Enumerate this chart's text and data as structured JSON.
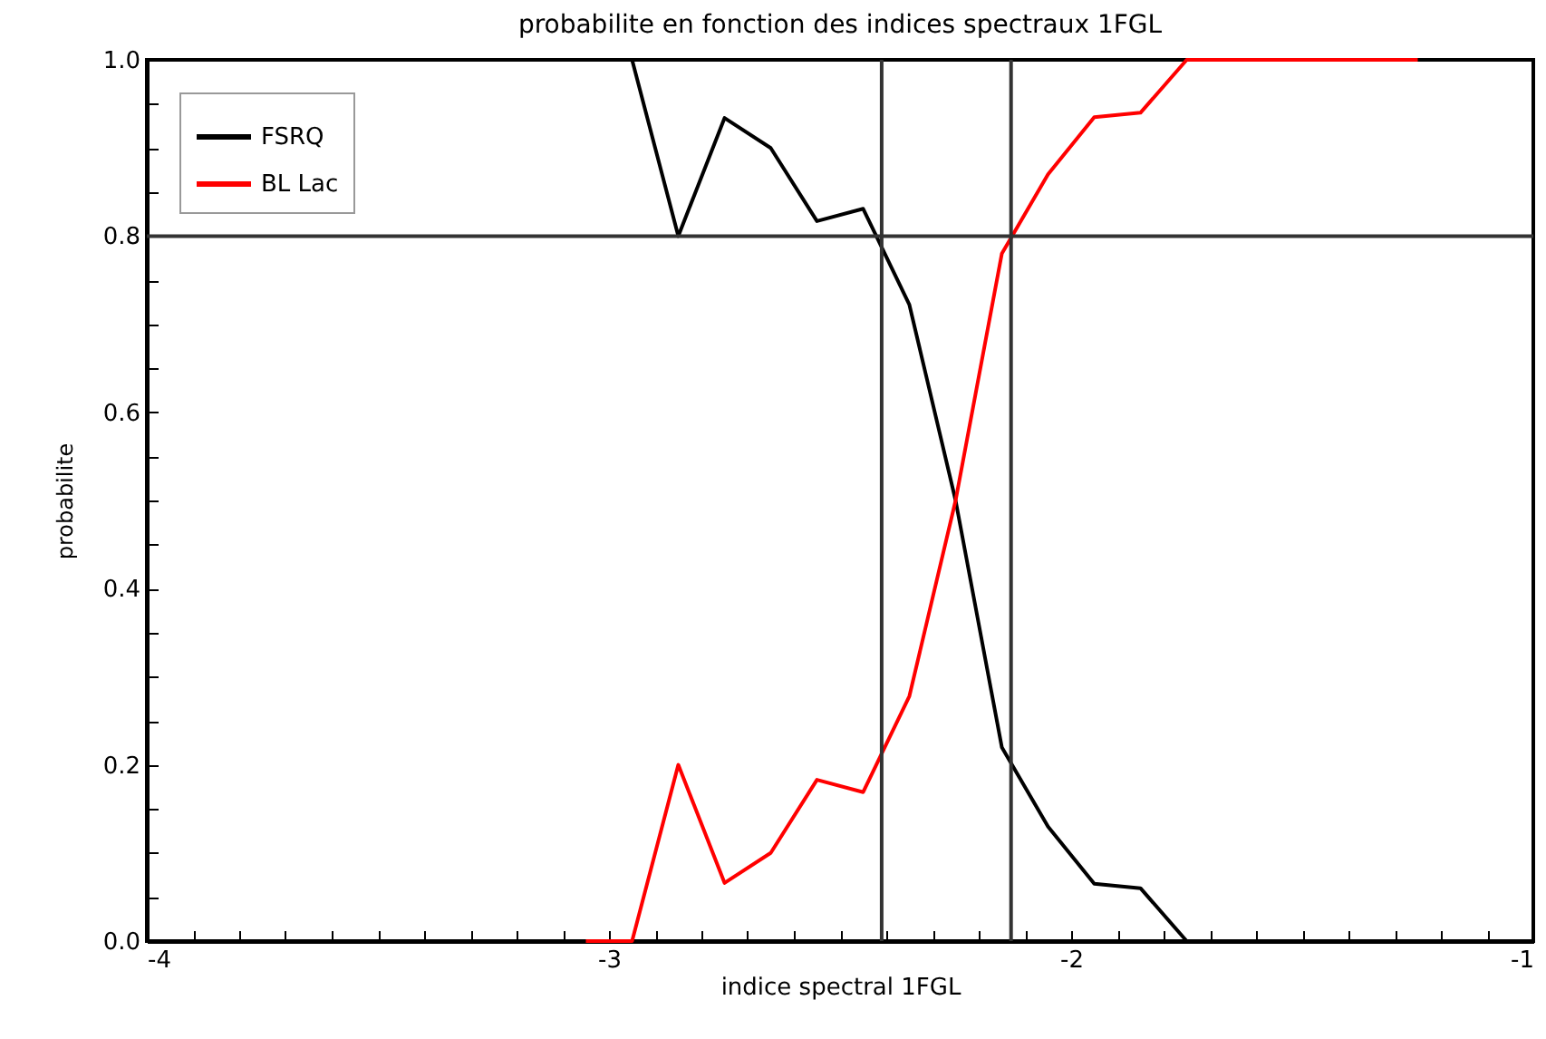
{
  "chart_data": {
    "type": "line",
    "title": "probabilite en fonction des indices spectraux 1FGL",
    "xlabel": "indice spectral 1FGL",
    "ylabel": "probabilite",
    "series": [
      {
        "name": "FSRQ",
        "color": "#000000",
        "x": [
          -2.95,
          -2.85,
          -2.75,
          -2.65,
          -2.55,
          -2.45,
          -2.35,
          -2.25,
          -2.15,
          -2.05,
          -1.95,
          -1.85,
          -1.75
        ],
        "values": [
          1.0,
          0.8,
          0.934,
          0.9,
          0.817,
          0.831,
          0.722,
          0.5,
          0.22,
          0.13,
          0.065,
          0.06,
          0.0
        ]
      },
      {
        "name": "BL Lac",
        "color": "#ff0000",
        "x": [
          -3.05,
          -2.95,
          -2.85,
          -2.75,
          -2.65,
          -2.55,
          -2.45,
          -2.35,
          -2.25,
          -2.15,
          -2.05,
          -1.95,
          -1.85,
          -1.75,
          -1.65,
          -1.55,
          -1.45,
          -1.35,
          -1.25
        ],
        "values": [
          0.0,
          0.0,
          0.2,
          0.066,
          0.1,
          0.183,
          0.169,
          0.278,
          0.5,
          0.78,
          0.87,
          0.935,
          0.94,
          1.0,
          1.0,
          1.0,
          1.0,
          1.0,
          1.0
        ]
      }
    ],
    "xlim": [
      -4,
      -1
    ],
    "ylim": [
      0,
      1
    ],
    "xticks": [
      -4,
      {
        "value": -3.9,
        "label": null
      },
      {
        "value": -3.8,
        "label": null
      },
      {
        "value": -3.7,
        "label": null
      },
      {
        "value": -3.6,
        "label": null
      },
      {
        "value": -3.5,
        "label": null
      },
      {
        "value": -3.4,
        "label": null
      },
      {
        "value": -3.3,
        "label": null
      },
      {
        "value": -3.2,
        "label": null
      },
      {
        "value": -3.1,
        "label": null
      },
      -3,
      {
        "value": -2.9,
        "label": null
      },
      {
        "value": -2.8,
        "label": null
      },
      {
        "value": -2.7,
        "label": null
      },
      {
        "value": -2.6,
        "label": null
      },
      {
        "value": -2.5,
        "label": null
      },
      {
        "value": -2.4,
        "label": null
      },
      {
        "value": -2.3,
        "label": null
      },
      {
        "value": -2.2,
        "label": null
      },
      {
        "value": -2.1,
        "label": null
      },
      -2,
      {
        "value": -1.9,
        "label": null
      },
      {
        "value": -1.8,
        "label": null
      },
      {
        "value": -1.7,
        "label": null
      },
      {
        "value": -1.6,
        "label": null
      },
      {
        "value": -1.5,
        "label": null
      },
      {
        "value": -1.4,
        "label": null
      },
      {
        "value": -1.3,
        "label": null
      },
      {
        "value": -1.2,
        "label": null
      },
      {
        "value": -1.1,
        "label": null
      },
      -1
    ],
    "yticks": [
      {
        "value": 0,
        "label": "0.0"
      },
      {
        "value": 0.05,
        "label": null
      },
      {
        "value": 0.1,
        "label": null
      },
      {
        "value": 0.15,
        "label": null
      },
      {
        "value": 0.2,
        "label": "0.2"
      },
      {
        "value": 0.25,
        "label": null
      },
      {
        "value": 0.3,
        "label": null
      },
      {
        "value": 0.35,
        "label": null
      },
      {
        "value": 0.4,
        "label": "0.4"
      },
      {
        "value": 0.45,
        "label": null
      },
      {
        "value": 0.5,
        "label": null
      },
      {
        "value": 0.55,
        "label": null
      },
      {
        "value": 0.6,
        "label": "0.6"
      },
      {
        "value": 0.65,
        "label": null
      },
      {
        "value": 0.7,
        "label": null
      },
      {
        "value": 0.75,
        "label": null
      },
      {
        "value": 0.8,
        "label": "0.8"
      },
      {
        "value": 0.85,
        "label": null
      },
      {
        "value": 0.9,
        "label": null
      },
      {
        "value": 0.95,
        "label": null
      },
      {
        "value": 1,
        "label": "1.0"
      }
    ],
    "ref_lines": [
      {
        "axis": "x",
        "value": -2.41,
        "color": "#333333"
      },
      {
        "axis": "x",
        "value": -2.13,
        "color": "#333333"
      },
      {
        "axis": "y",
        "value": 0.8,
        "color": "#333333"
      }
    ],
    "legend": "top left",
    "grid": false
  }
}
